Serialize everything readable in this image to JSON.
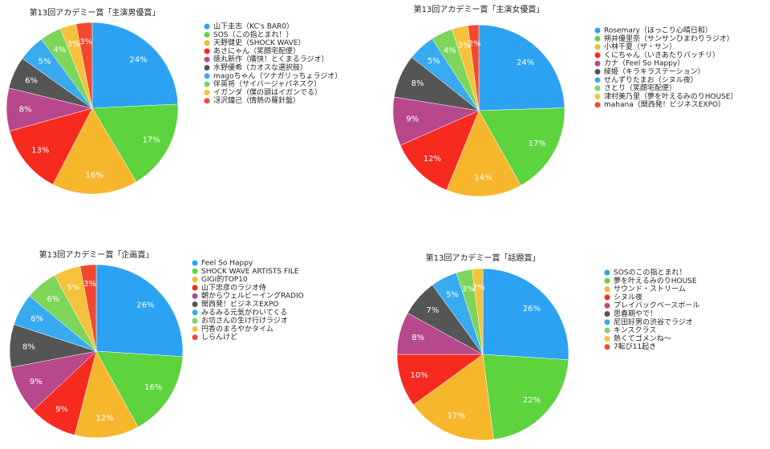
{
  "chart_data": [
    {
      "type": "pie",
      "title": "第13回アカデミー賞「主演男優賞」",
      "categories": [
        "山下圭志（KC's BAR0）",
        "SOS（この指とまれ！）",
        "天野健史（SHOCK WAVE）",
        "あさにゃん（笑顔宅配便）",
        "徳丸新作（痛快！とくまるラジオ）",
        "水野優希（カオスな選択肢）",
        "magoちゃん（ツナガリっちょラジオ）",
        "伴英将（サイバージャパネスク）",
        "イガンダ（僕の頭はイガンでる）",
        "冴沢鐘己（情熱の羅針盤）"
      ],
      "values": [
        24,
        17,
        16,
        13,
        8,
        6,
        5,
        4,
        3,
        3
      ],
      "value_labels": [
        "24%",
        "17%",
        "16%",
        "13%",
        "8%",
        "6%",
        "5%",
        "4%",
        "3%",
        "3%"
      ],
      "colors": [
        "#2ba2f2",
        "#5dd33d",
        "#f6b72c",
        "#f62a1f",
        "#b7488b",
        "#555555",
        "#37aaf0",
        "#7dd55a",
        "#f5c23b",
        "#f4472f"
      ]
    },
    {
      "type": "pie",
      "title": "第13回アカデミー賞「主演女優賞」",
      "categories": [
        "Rosemary（ほっこり心晴日和）",
        "朔井優里奈（サンサンひまわりラジオ）",
        "小林千夏（ザ・サン）",
        "くにちゃん（いきあたりバッチリ）",
        "カナ（Feel So Happy）",
        "綾姫（キラキラステーション）",
        "せんずりたまお（シヌル夜）",
        "さとり（笑顔宅配便）",
        "津村美乃里（夢を叶えるみのりHOUSE）",
        "mahana（関西発！ビジネスEXPO）"
      ],
      "values": [
        24,
        17,
        14,
        12,
        9,
        8,
        5,
        4,
        3,
        2
      ],
      "value_labels": [
        "24%",
        "17%",
        "14%",
        "12%",
        "9%",
        "8%",
        "5%",
        "4%",
        "3%",
        "2%"
      ],
      "colors": [
        "#2ba2f2",
        "#5dd33d",
        "#f6b72c",
        "#f62a1f",
        "#b7488b",
        "#555555",
        "#37aaf0",
        "#7dd55a",
        "#f5c23b",
        "#f4472f"
      ]
    },
    {
      "type": "pie",
      "title": "第13回アカデミー賞「企画賞」",
      "categories": [
        "Feel So Happy",
        "SHOCK WAVE ARTISTS FILE",
        "GIGI的TOP10",
        "山下忠彦のラジオ侍",
        "朝からウェルビーイングRADIO",
        "関西発！ビジネスEXPO",
        "みるみる元気がわいてくる",
        "お坊さんの生け行けラジオ",
        "円香のまろやかタイム",
        "しらんけど"
      ],
      "values": [
        26,
        16,
        12,
        9,
        9,
        8,
        6,
        6,
        5,
        3
      ],
      "value_labels": [
        "26%",
        "16%",
        "12%",
        "9%",
        "9%",
        "8%",
        "6%",
        "6%",
        "5%",
        "3%"
      ],
      "colors": [
        "#2ba2f2",
        "#5dd33d",
        "#f6b72c",
        "#f62a1f",
        "#b7488b",
        "#555555",
        "#37aaf0",
        "#7dd55a",
        "#f5c23b",
        "#f4472f"
      ]
    },
    {
      "type": "pie",
      "title": "第13回アカデミー賞「話題賞」",
      "categories": [
        "SOSのこの指とまれ！",
        "夢を叶えるみのりHOUSE",
        "サウンド・ストリーム",
        "シヌル夜",
        "プレイバックベースボール",
        "思春期やで！",
        "尼田好男の渋谷でラジオ",
        "キンスクラス",
        "熱くてゴメンね〜",
        "7転び11起き"
      ],
      "values": [
        26,
        22,
        17,
        10,
        8,
        7,
        5,
        3,
        2,
        null
      ],
      "value_labels": [
        "26%",
        "22%",
        "17%",
        "10%",
        "8%",
        "7%",
        "5%",
        "3%",
        "2%",
        null
      ],
      "colors": [
        "#2ba2f2",
        "#5dd33d",
        "#f6b72c",
        "#f62a1f",
        "#b7488b",
        "#555555",
        "#37aaf0",
        "#7dd55a",
        "#f5c23b",
        "#f4472f"
      ]
    }
  ]
}
